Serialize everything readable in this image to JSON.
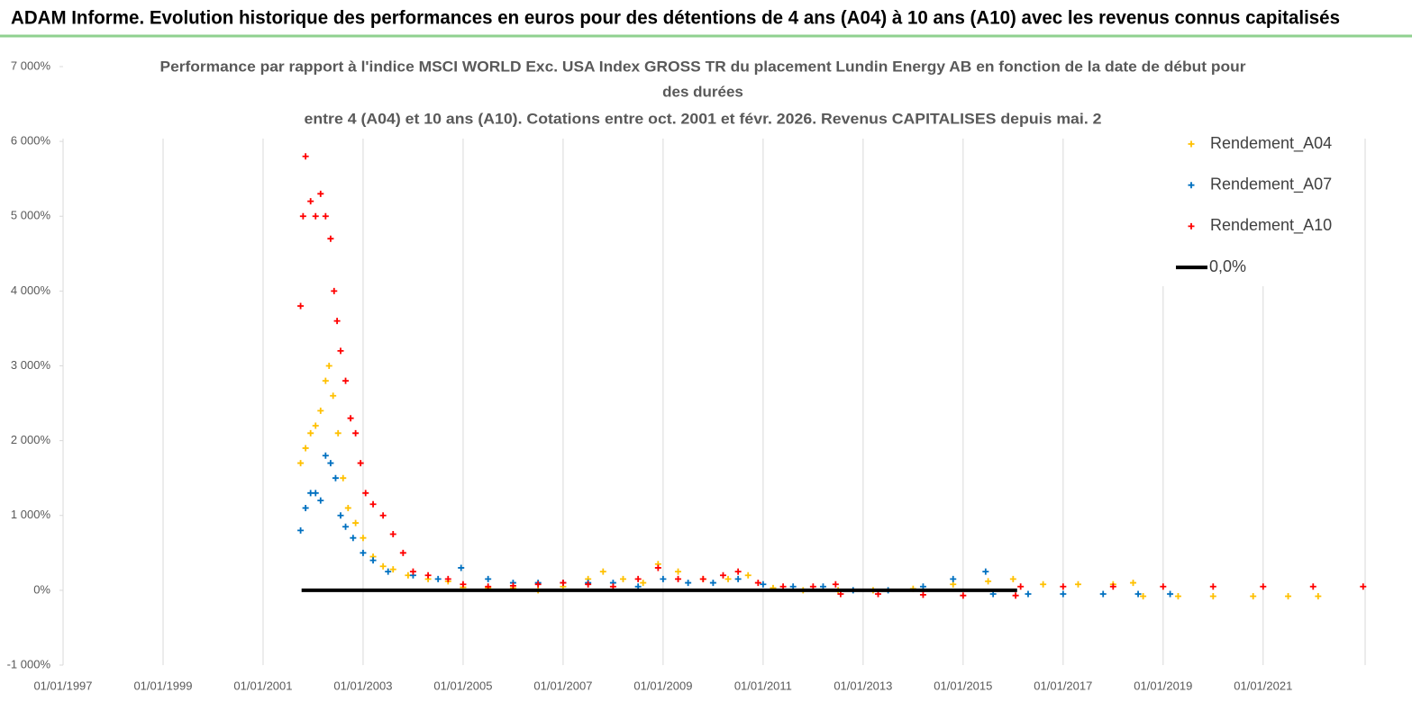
{
  "header": {
    "title": "ADAM Informe. Evolution historique des performances en euros pour des détentions de 4 ans (A04) à 10 ans (A10) avec les revenus connus capitalisés"
  },
  "chart_data": {
    "type": "scatter",
    "title_lines": [
      "Performance par rapport à l'indice MSCI WORLD Exc. USA Index GROSS TR  du placement Lundin Energy AB en fonction de la date de début pour",
      "des durées",
      "entre 4 (A04) et 10 ans (A10). Cotations entre oct. 2001 et févr. 2026. Revenus CAPITALISES depuis mai. 2"
    ],
    "xlim": [
      1997,
      2023.04
    ],
    "xticks": [
      {
        "value": 1997,
        "label": "01/01/1997"
      },
      {
        "value": 1999,
        "label": "01/01/1999"
      },
      {
        "value": 2001,
        "label": "01/01/2001"
      },
      {
        "value": 2003,
        "label": "01/01/2003"
      },
      {
        "value": 2005,
        "label": "01/01/2005"
      },
      {
        "value": 2007,
        "label": "01/01/2007"
      },
      {
        "value": 2009,
        "label": "01/01/2009"
      },
      {
        "value": 2011,
        "label": "01/01/2011"
      },
      {
        "value": 2013,
        "label": "01/01/2013"
      },
      {
        "value": 2015,
        "label": "01/01/2015"
      },
      {
        "value": 2017,
        "label": "01/01/2017"
      },
      {
        "value": 2019,
        "label": "01/01/2019"
      },
      {
        "value": 2021,
        "label": "01/01/2021"
      }
    ],
    "ylim": [
      -1000,
      7000
    ],
    "yticks": [
      {
        "value": -1000,
        "label": "-1 000%"
      },
      {
        "value": 0,
        "label": "0%"
      },
      {
        "value": 1000,
        "label": "1 000%"
      },
      {
        "value": 2000,
        "label": "2 000%"
      },
      {
        "value": 3000,
        "label": "3 000%"
      },
      {
        "value": 4000,
        "label": "4 000%"
      },
      {
        "value": 5000,
        "label": "5 000%"
      },
      {
        "value": 6000,
        "label": "6 000%"
      },
      {
        "value": 7000,
        "label": "7 000%"
      }
    ],
    "grid": "x",
    "legend": "right",
    "series": [
      {
        "name": "Rendement_A04",
        "color": "#ffc000",
        "marker": "+",
        "x": [
          2001.75,
          2001.85,
          2001.95,
          2002.05,
          2002.15,
          2002.25,
          2002.32,
          2002.4,
          2002.5,
          2002.6,
          2002.7,
          2002.85,
          2003.0,
          2003.2,
          2003.4,
          2003.6,
          2003.9,
          2004.3,
          2004.7,
          2005.0,
          2005.5,
          2006.0,
          2006.5,
          2007.0,
          2007.5,
          2007.8,
          2008.2,
          2008.6,
          2008.9,
          2009.3,
          2009.8,
          2010.3,
          2010.7,
          2011.2,
          2011.8,
          2012.5,
          2013.2,
          2014.0,
          2014.8,
          2015.5,
          2016.0,
          2016.6,
          2017.3,
          2018.0,
          2018.4,
          2018.6,
          2019.3,
          2020.0,
          2020.8,
          2021.5,
          2022.1
        ],
        "values": [
          1700,
          1900,
          2100,
          2200,
          2400,
          2800,
          3000,
          2600,
          2100,
          1500,
          1100,
          900,
          700,
          450,
          320,
          280,
          200,
          150,
          120,
          40,
          30,
          30,
          0,
          50,
          150,
          250,
          150,
          100,
          350,
          250,
          150,
          150,
          200,
          30,
          0,
          0,
          0,
          20,
          80,
          120,
          150,
          80,
          80,
          80,
          100,
          -80,
          -80,
          -80,
          -80,
          -80,
          -80
        ]
      },
      {
        "name": "Rendement_A07",
        "color": "#0070c0",
        "marker": "+",
        "x": [
          2001.75,
          2001.85,
          2001.95,
          2002.05,
          2002.15,
          2002.25,
          2002.35,
          2002.45,
          2002.55,
          2002.65,
          2002.8,
          2003.0,
          2003.2,
          2003.5,
          2004.0,
          2004.5,
          2004.96,
          2005.5,
          2006.0,
          2006.5,
          2007.0,
          2007.5,
          2008.0,
          2008.5,
          2009.0,
          2009.5,
          2010.0,
          2010.5,
          2011.0,
          2011.6,
          2012.2,
          2012.8,
          2013.5,
          2014.2,
          2014.8,
          2015.45,
          2015.6,
          2016.3,
          2017.0,
          2017.8,
          2018.5,
          2019.14
        ],
        "values": [
          800,
          1100,
          1300,
          1300,
          1200,
          1800,
          1700,
          1500,
          1000,
          850,
          700,
          500,
          400,
          250,
          200,
          150,
          300,
          150,
          100,
          100,
          100,
          100,
          100,
          50,
          150,
          100,
          100,
          150,
          80,
          50,
          50,
          0,
          0,
          50,
          150,
          250,
          -50,
          -50,
          -50,
          -50,
          -50,
          -50
        ]
      },
      {
        "name": "Rendement_A10",
        "color": "#ff0000",
        "marker": "+",
        "x": [
          2001.75,
          2001.8,
          2001.85,
          2001.95,
          2002.05,
          2002.15,
          2002.25,
          2002.35,
          2002.42,
          2002.48,
          2002.55,
          2002.65,
          2002.75,
          2002.85,
          2002.95,
          2003.05,
          2003.2,
          2003.4,
          2003.6,
          2003.8,
          2004.0,
          2004.3,
          2004.7,
          2005.0,
          2005.5,
          2006.0,
          2006.5,
          2007.0,
          2007.5,
          2008.0,
          2008.5,
          2008.9,
          2009.3,
          2009.8,
          2010.2,
          2010.5,
          2010.9,
          2011.4,
          2012.0,
          2012.45,
          2012.55,
          2013.3,
          2014.2,
          2015.0,
          2016.05,
          2016.15,
          2017.0,
          2018.0,
          2019.0,
          2020.0,
          2021.0,
          2022.0,
          2023.0
        ],
        "values": [
          3800,
          5000,
          5800,
          5200,
          5000,
          5300,
          5000,
          4700,
          4000,
          3600,
          3200,
          2800,
          2300,
          2100,
          1700,
          1300,
          1150,
          1000,
          750,
          500,
          250,
          200,
          150,
          80,
          50,
          60,
          80,
          100,
          80,
          50,
          150,
          300,
          150,
          150,
          200,
          250,
          100,
          50,
          50,
          80,
          -50,
          -50,
          -60,
          -70,
          -70,
          50,
          50,
          50,
          50,
          50,
          50,
          50,
          50
        ]
      },
      {
        "name": "0,0%",
        "color": "#000000",
        "marker": "line",
        "x": [
          2001.77,
          2016.08
        ],
        "values": [
          0,
          0
        ]
      }
    ]
  }
}
